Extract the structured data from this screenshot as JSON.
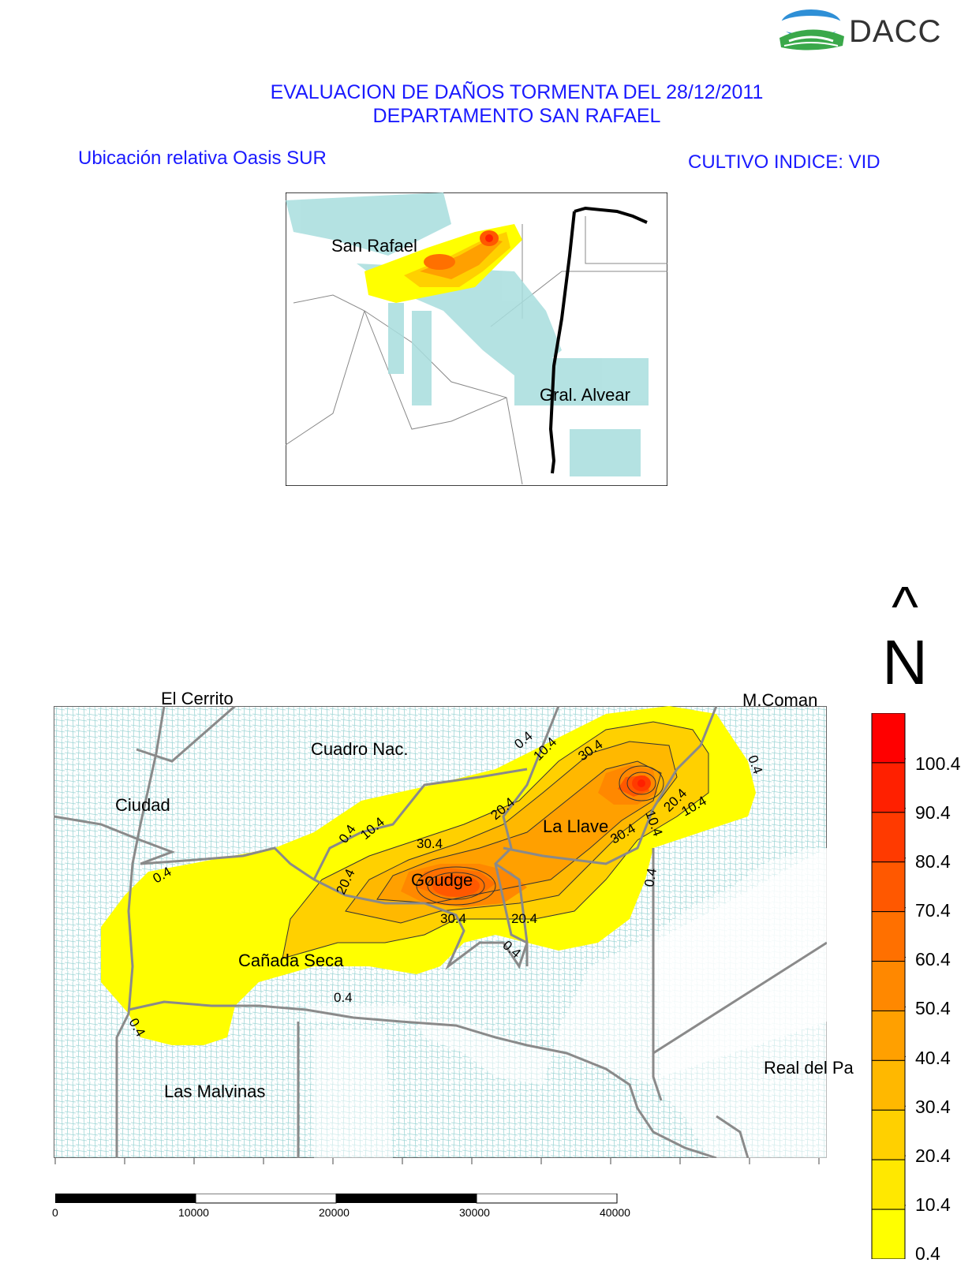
{
  "logo": {
    "text": "DACC",
    "icon": "dacc-logo-icon"
  },
  "header": {
    "title_line1": "EVALUACION DE DAÑOS TORMENTA DEL 28/12/2011",
    "title_line2": "DEPARTAMENTO SAN RAFAEL",
    "left_subtitle": "Ubicación relativa Oasis SUR",
    "right_subtitle": "CULTIVO INDICE: VID"
  },
  "inset_map": {
    "labels": [
      "San Rafael",
      "Gral. Alvear"
    ]
  },
  "north_arrow": {
    "arrow": "^",
    "letter": "N"
  },
  "main_map": {
    "place_labels": [
      "El Cerrito",
      "M.Coman",
      "Cuadro Nac.",
      "Ciudad",
      "La Llave",
      "Goudge",
      "Cañada Seca",
      "Las Malvinas",
      "Real del Pa"
    ],
    "contour_labels": [
      "0.4",
      "10.4",
      "20.4",
      "30.4"
    ]
  },
  "legend": {
    "colors": [
      "#ffff00",
      "#ffe800",
      "#ffd000",
      "#ffb800",
      "#ffa000",
      "#ff8800",
      "#ff7000",
      "#ff5800",
      "#ff3a00",
      "#ff2000",
      "#ff0000"
    ],
    "labels": [
      "100.4",
      "90.4",
      "80.4",
      "70.4",
      "60.4",
      "50.4",
      "40.4",
      "30.4",
      "20.4",
      "10.4",
      "0.4"
    ]
  },
  "scale_bar": {
    "labels": [
      "0",
      "10000",
      "20000",
      "30000",
      "40000"
    ]
  }
}
